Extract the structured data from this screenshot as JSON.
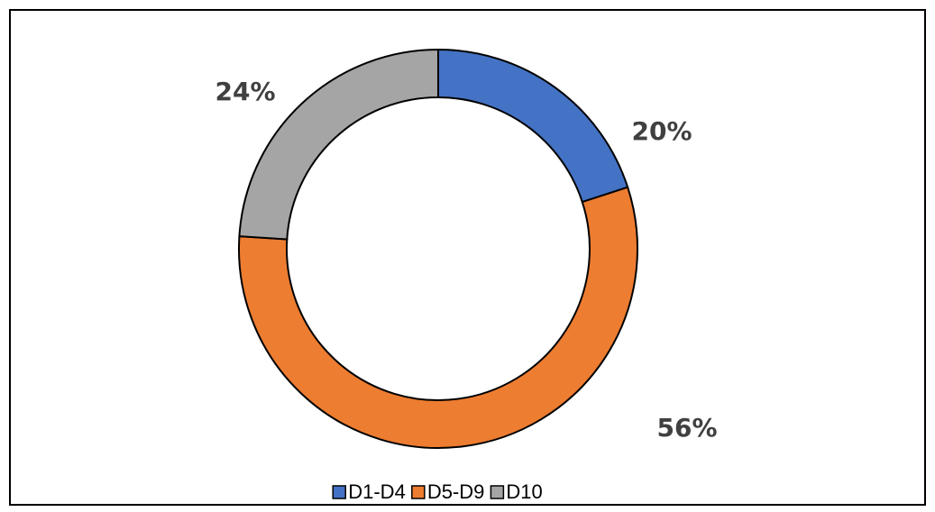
{
  "chart_data": {
    "type": "donut",
    "categories": [
      "D1-D4",
      "D5-D9",
      "D10"
    ],
    "values": [
      20,
      56,
      24
    ],
    "value_labels": [
      "20%",
      "56%",
      "24%"
    ],
    "colors": [
      "#4472c4",
      "#ed7d31",
      "#a5a5a5"
    ],
    "legend": "bottom"
  }
}
